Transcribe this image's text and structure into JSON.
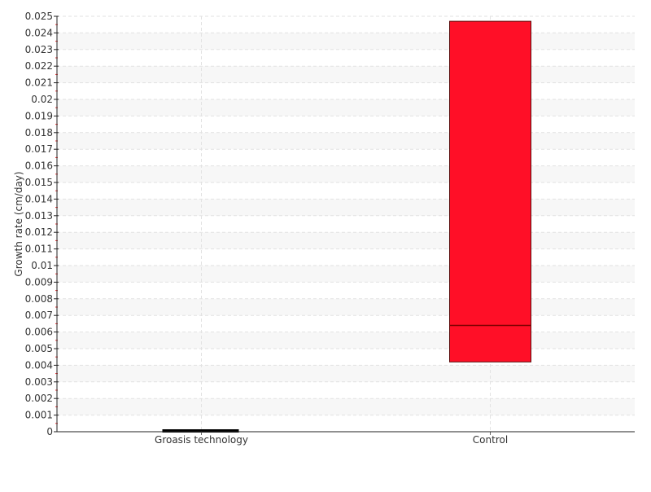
{
  "chart_data": {
    "type": "boxplot",
    "title": "",
    "xlabel": "",
    "ylabel": "Growth rate (cm/day)",
    "ylim": [
      0,
      0.025
    ],
    "ytick_step": 0.001,
    "yticks": [
      "0",
      "0.001",
      "0.002",
      "0.003",
      "0.004",
      "0.005",
      "0.006",
      "0.007",
      "0.008",
      "0.009",
      "0.01",
      "0.011",
      "0.012",
      "0.013",
      "0.014",
      "0.015",
      "0.016",
      "0.017",
      "0.018",
      "0.019",
      "0.02",
      "0.021",
      "0.022",
      "0.023",
      "0.024",
      "0.025"
    ],
    "grid": true,
    "categories": [
      "Groasis technology",
      "Control"
    ],
    "boxes": [
      {
        "category": "Groasis technology",
        "q1": 0,
        "median": 0,
        "q3": 0,
        "color": "#000000"
      },
      {
        "category": "Control",
        "q1": 0.0042,
        "median": 0.0064,
        "q3": 0.0247,
        "color": "#ff0f27"
      }
    ]
  }
}
